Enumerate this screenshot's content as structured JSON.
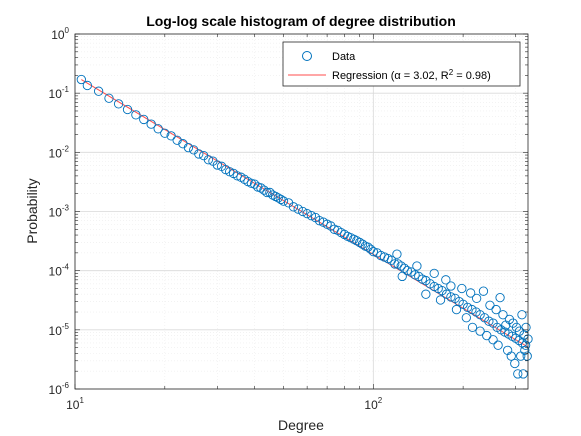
{
  "chart_data": {
    "type": "scatter",
    "title": "Log-log scale histogram of degree distribution",
    "xlabel": "Degree",
    "ylabel": "Probability",
    "xscale": "log",
    "yscale": "log",
    "xlim": [
      10,
      330
    ],
    "ylim": [
      1e-06,
      1
    ],
    "grid": true,
    "minor_grid": true,
    "legend_position": "top-right",
    "x_ticks": [
      {
        "value": 10,
        "base": "10",
        "exp": "1"
      },
      {
        "value": 100,
        "base": "10",
        "exp": "2"
      }
    ],
    "y_ticks": [
      {
        "value": 1,
        "base": "10",
        "exp": "0"
      },
      {
        "value": 0.1,
        "base": "10",
        "exp": "-1"
      },
      {
        "value": 0.01,
        "base": "10",
        "exp": "-2"
      },
      {
        "value": 0.001,
        "base": "10",
        "exp": "-3"
      },
      {
        "value": 0.0001,
        "base": "10",
        "exp": "-4"
      },
      {
        "value": 1e-05,
        "base": "10",
        "exp": "-5"
      },
      {
        "value": 1e-06,
        "base": "10",
        "exp": "-6"
      }
    ],
    "series": [
      {
        "name": "Data",
        "kind": "markers",
        "marker": "circle",
        "color": "#0072BD",
        "points": [
          [
            10.5,
            0.17
          ],
          [
            11,
            0.135
          ],
          [
            12,
            0.108
          ],
          [
            13,
            0.082
          ],
          [
            14,
            0.066
          ],
          [
            15,
            0.053
          ],
          [
            16,
            0.043
          ],
          [
            17,
            0.036
          ],
          [
            18,
            0.03
          ],
          [
            19,
            0.025
          ],
          [
            20,
            0.021
          ],
          [
            21,
            0.019
          ],
          [
            22,
            0.016
          ],
          [
            23,
            0.014
          ],
          [
            24,
            0.012
          ],
          [
            25,
            0.011
          ],
          [
            26,
            0.0094
          ],
          [
            27,
            0.0088
          ],
          [
            28,
            0.0075
          ],
          [
            29,
            0.0071
          ],
          [
            30,
            0.0061
          ],
          [
            31,
            0.0058
          ],
          [
            32,
            0.0051
          ],
          [
            33,
            0.0047
          ],
          [
            34,
            0.0044
          ],
          [
            35,
            0.004
          ],
          [
            36,
            0.0038
          ],
          [
            37,
            0.0035
          ],
          [
            38,
            0.0032
          ],
          [
            39,
            0.003
          ],
          [
            40,
            0.0029
          ],
          [
            41,
            0.0026
          ],
          [
            42,
            0.0025
          ],
          [
            43,
            0.0023
          ],
          [
            44,
            0.0021
          ],
          [
            45,
            0.0021
          ],
          [
            46,
            0.0019
          ],
          [
            47,
            0.0018
          ],
          [
            48,
            0.0017
          ],
          [
            49,
            0.0016
          ],
          [
            50,
            0.0015
          ],
          [
            52,
            0.0014
          ],
          [
            54,
            0.0012
          ],
          [
            56,
            0.0011
          ],
          [
            58,
            0.001
          ],
          [
            60,
            0.00092
          ],
          [
            62,
            0.00085
          ],
          [
            64,
            0.00079
          ],
          [
            66,
            0.0007
          ],
          [
            68,
            0.00066
          ],
          [
            70,
            0.00061
          ],
          [
            72,
            0.00057
          ],
          [
            74,
            0.0005
          ],
          [
            76,
            0.00048
          ],
          [
            78,
            0.00044
          ],
          [
            80,
            0.00041
          ],
          [
            82,
            0.00038
          ],
          [
            84,
            0.00036
          ],
          [
            86,
            0.00034
          ],
          [
            88,
            0.00032
          ],
          [
            90,
            0.0003
          ],
          [
            92,
            0.00028
          ],
          [
            94,
            0.00026
          ],
          [
            96,
            0.00025
          ],
          [
            98,
            0.00023
          ],
          [
            100,
            0.00021
          ],
          [
            103,
            0.0002
          ],
          [
            106,
            0.00018
          ],
          [
            109,
            0.00017
          ],
          [
            112,
            0.00016
          ],
          [
            115,
            0.00015
          ],
          [
            118,
            0.00013
          ],
          [
            121,
            0.00013
          ],
          [
            124,
            0.00012
          ],
          [
            127,
            0.00011
          ],
          [
            130,
            0.0001
          ],
          [
            134,
            9.5e-05
          ],
          [
            138,
            8.5e-05
          ],
          [
            142,
            8e-05
          ],
          [
            146,
            7.2e-05
          ],
          [
            150,
            6.8e-05
          ],
          [
            155,
            6e-05
          ],
          [
            160,
            5.4e-05
          ],
          [
            165,
            5e-05
          ],
          [
            170,
            4.6e-05
          ],
          [
            176,
            4e-05
          ],
          [
            182,
            3.6e-05
          ],
          [
            188,
            3.4e-05
          ],
          [
            194,
            3e-05
          ],
          [
            200,
            2.7e-05
          ],
          [
            207,
            2.4e-05
          ],
          [
            214,
            2.2e-05
          ],
          [
            221,
            2e-05
          ],
          [
            228,
            1.8e-05
          ],
          [
            236,
            1.6e-05
          ],
          [
            244,
            1.4e-05
          ],
          [
            252,
            1.3e-05
          ],
          [
            260,
            1.1e-05
          ],
          [
            268,
            1e-05
          ],
          [
            276,
            9.2e-06
          ],
          [
            284,
            8.5e-06
          ],
          [
            292,
            7.8e-06
          ],
          [
            300,
            7.2e-06
          ],
          [
            308,
            6.6e-06
          ],
          [
            316,
            6e-06
          ],
          [
            324,
            5.5e-06
          ],
          [
            120,
            0.00019
          ],
          [
            125,
            8e-05
          ],
          [
            140,
            0.00012
          ],
          [
            150,
            4e-05
          ],
          [
            160,
            9e-05
          ],
          [
            168,
            3.2e-05
          ],
          [
            175,
            7e-05
          ],
          [
            182,
            5.5e-05
          ],
          [
            190,
            2.2e-05
          ],
          [
            198,
            5e-05
          ],
          [
            205,
            1.6e-05
          ],
          [
            212,
            4.2e-05
          ],
          [
            215,
            1.1e-05
          ],
          [
            222,
            3.4e-05
          ],
          [
            228,
            9.5e-06
          ],
          [
            234,
            4.5e-05
          ],
          [
            240,
            8e-06
          ],
          [
            246,
            2.6e-05
          ],
          [
            252,
            6.8e-06
          ],
          [
            258,
            2.2e-05
          ],
          [
            262,
            5.5e-06
          ],
          [
            266,
            3.5e-05
          ],
          [
            272,
            1.8e-05
          ],
          [
            278,
            1.2e-05
          ],
          [
            282,
            4.5e-06
          ],
          [
            286,
            1.5e-05
          ],
          [
            290,
            3.6e-06
          ],
          [
            294,
            1.3e-05
          ],
          [
            298,
            2.7e-06
          ],
          [
            302,
            1.1e-05
          ],
          [
            305,
            1.8e-06
          ],
          [
            309,
            9.5e-06
          ],
          [
            312,
            3.6e-06
          ],
          [
            315,
            1.8e-05
          ],
          [
            318,
            1.8e-06
          ],
          [
            320,
            8.2e-06
          ],
          [
            322,
            4.5e-06
          ],
          [
            325,
            1.1e-05
          ],
          [
            328,
            3.6e-06
          ],
          [
            330,
            7e-06
          ]
        ]
      },
      {
        "name": "Regression (α = 3.02, R² = 0.98)",
        "kind": "line",
        "color": "#FF4D4D",
        "x_range": [
          10.5,
          330
        ],
        "alpha": 3.02,
        "intercept_x": 10.5,
        "intercept_y": 0.17
      }
    ],
    "legend_text": {
      "data": "Data",
      "reg_prefix": "Regression (",
      "reg_alpha": "α",
      "reg_mid": " = 3.02, R",
      "reg_sup": "2",
      "reg_suffix": " = 0.98)"
    }
  }
}
